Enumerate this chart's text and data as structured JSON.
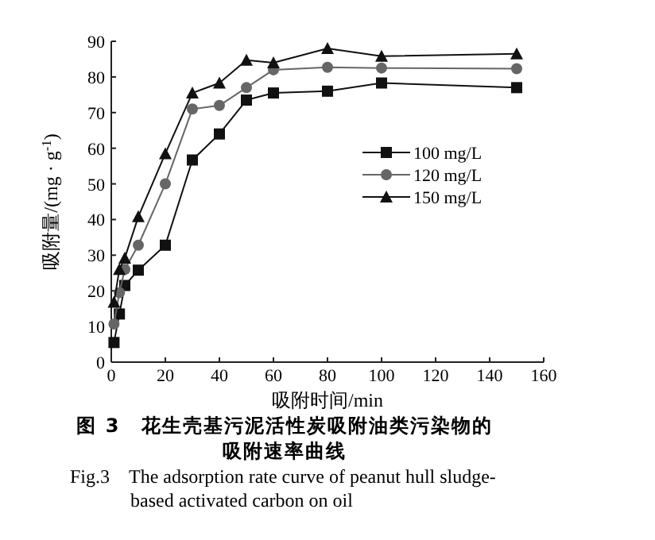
{
  "chart_data": {
    "type": "line",
    "title": "图 3　花生壳基污泥活性炭吸附油类污染物的吸附速率曲线",
    "subtitle": "Fig.3　The adsorption rate curve of peanut hull sludge-based activated carbon on oil",
    "xlabel": "吸附时间/min",
    "ylabel": "吸附量/(mg · g$^{-1}$)",
    "x": [
      1,
      3,
      5,
      10,
      20,
      30,
      40,
      50,
      60,
      80,
      100,
      150
    ],
    "series": [
      {
        "name": "100 mg/L",
        "color": "#111111",
        "marker": "square",
        "values": [
          5.5,
          13.5,
          21.5,
          25.8,
          32.8,
          56.7,
          64,
          73.5,
          75.5,
          76,
          78.3,
          77
        ]
      },
      {
        "name": "120 mg/L",
        "color": "#666666",
        "marker": "circle",
        "values": [
          10.7,
          19.5,
          26,
          32.8,
          50,
          71,
          72,
          77,
          82,
          82.7,
          82.5,
          82.3
        ]
      },
      {
        "name": "150 mg/L",
        "color": "#111111",
        "marker": "triangle",
        "values": [
          16.8,
          26,
          29.2,
          40.8,
          58.5,
          75.5,
          78.3,
          84.7,
          84,
          88,
          85.8,
          86.5
        ]
      }
    ],
    "xlim": [
      0,
      160
    ],
    "xticks": [
      0,
      20,
      40,
      60,
      80,
      100,
      120,
      140,
      160
    ],
    "ylim": [
      0,
      90
    ],
    "yticks": [
      0,
      10,
      20,
      30,
      40,
      50,
      60,
      70,
      80,
      90
    ],
    "legend": "right",
    "grid": false,
    "line_style": "solid"
  }
}
